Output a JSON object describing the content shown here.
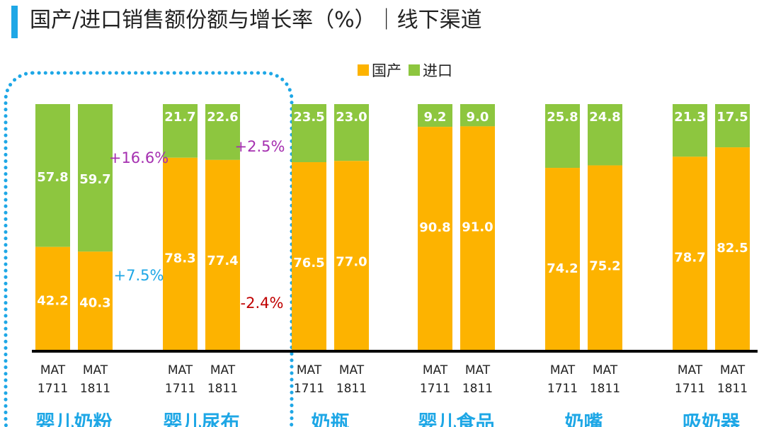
{
  "title": "国产/进口销售额份额与增长率（%）｜线下渠道",
  "colors": {
    "domestic": "#fdb300",
    "import": "#8dc63f",
    "accent": "#1ea7e6",
    "growth_up": "#a52fb0",
    "growth_blue": "#1ea7e6",
    "growth_down": "#c00000"
  },
  "chart_data": {
    "type": "bar",
    "stacked": true,
    "legend_position": "top-right",
    "series": [
      {
        "name": "国产",
        "key": "domestic"
      },
      {
        "name": "进口",
        "key": "import"
      }
    ],
    "groups": [
      {
        "category": "婴儿奶粉",
        "bars": [
          {
            "period": [
              "MAT",
              "1711"
            ],
            "domestic": 42.2,
            "import": 57.8
          },
          {
            "period": [
              "MAT",
              "1811"
            ],
            "domestic": 40.3,
            "import": 59.7
          }
        ]
      },
      {
        "category": "婴儿尿布",
        "bars": [
          {
            "period": [
              "MAT",
              "1711"
            ],
            "domestic": 78.3,
            "import": 21.7
          },
          {
            "period": [
              "MAT",
              "1811"
            ],
            "domestic": 77.4,
            "import": 22.6
          }
        ]
      },
      {
        "category": "奶瓶",
        "bars": [
          {
            "period": [
              "MAT",
              "1711"
            ],
            "domestic": 76.5,
            "import": 23.5
          },
          {
            "period": [
              "MAT",
              "1811"
            ],
            "domestic": 77.0,
            "import": 23.0
          }
        ]
      },
      {
        "category": "婴儿食品",
        "bars": [
          {
            "period": [
              "MAT",
              "1711"
            ],
            "domestic": 90.8,
            "import": 9.2
          },
          {
            "period": [
              "MAT",
              "1811"
            ],
            "domestic": 91.0,
            "import": 9.0
          }
        ]
      },
      {
        "category": "奶嘴",
        "bars": [
          {
            "period": [
              "MAT",
              "1711"
            ],
            "domestic": 74.2,
            "import": 25.8
          },
          {
            "period": [
              "MAT",
              "1811"
            ],
            "domestic": 75.2,
            "import": 24.8
          }
        ]
      },
      {
        "category": "吸奶器",
        "bars": [
          {
            "period": [
              "MAT",
              "1711"
            ],
            "domestic": 78.7,
            "import": 21.3
          },
          {
            "period": [
              "MAT",
              "1811"
            ],
            "domestic": 82.5,
            "import": 17.5
          }
        ]
      }
    ],
    "growth_annotations": [
      {
        "group": 0,
        "series": "import",
        "text": "+16.6%",
        "color_key": "growth_up"
      },
      {
        "group": 0,
        "series": "domestic",
        "text": "+7.5%",
        "color_key": "growth_blue"
      },
      {
        "group": 1,
        "series": "import",
        "text": "+2.5%",
        "color_key": "growth_up"
      },
      {
        "group": 1,
        "series": "domestic",
        "text": "-2.4%",
        "color_key": "growth_down"
      }
    ],
    "highlight": {
      "groups": [
        0,
        1
      ],
      "style": "dotted-rounded-box",
      "color_key": "accent"
    },
    "ylim": [
      0,
      100
    ]
  }
}
